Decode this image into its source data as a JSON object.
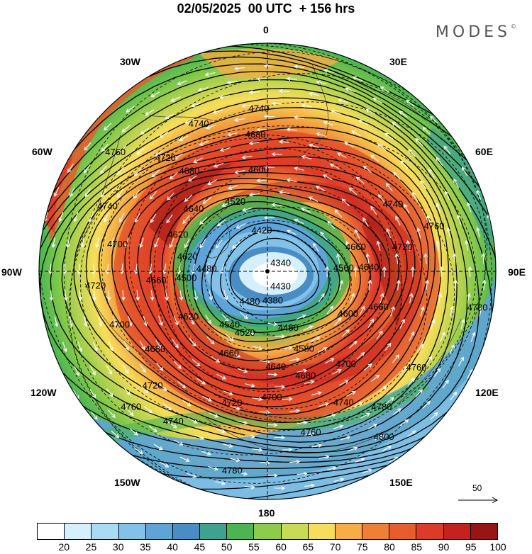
{
  "title": "02/05/2025  00 UTC  + 156 hrs",
  "brand": "MODES",
  "brand_mark": "©",
  "longitude_labels": {
    "lon_0": "0",
    "lon_30e": "30E",
    "lon_60e": "60E",
    "lon_90e": "90E",
    "lon_120e": "120E",
    "lon_150e": "150E",
    "lon_180": "180",
    "lon_150w": "150W",
    "lon_120w": "120W",
    "lon_90w": "90W",
    "lon_60w": "60W",
    "lon_30w": "30W"
  },
  "vector_reference": "50",
  "colorbar": {
    "ticks": [
      "20",
      "25",
      "30",
      "35",
      "40",
      "45",
      "50",
      "55",
      "60",
      "65",
      "70",
      "75",
      "80",
      "85",
      "90",
      "95",
      "100"
    ],
    "colors": [
      "#ffffff",
      "#d6f0fb",
      "#a9dcf2",
      "#82c1e8",
      "#5ea4d9",
      "#4a8cc4",
      "#3fa291",
      "#4cb552",
      "#8ccb4b",
      "#c7dc52",
      "#f7de5a",
      "#f6ad46",
      "#ef7f34",
      "#e85c2d",
      "#dd3a28",
      "#c4211f",
      "#9a1414"
    ]
  },
  "chart_data": {
    "type": "polar-stereographic map",
    "hemisphere": "north",
    "shading": "wind speed",
    "vectors": "wind",
    "geopotential_contours": [
      {
        "label": "4740",
        "at_lon": -3,
        "at_lat": 58
      },
      {
        "label": "4740",
        "at_lon": -25,
        "at_lat": 58
      },
      {
        "label": "4680",
        "at_lon": -5,
        "at_lat": 63
      },
      {
        "label": "4720",
        "at_lon": -42,
        "at_lat": 60
      },
      {
        "label": "4680",
        "at_lon": -38,
        "at_lat": 65
      },
      {
        "label": "4600",
        "at_lon": -5,
        "at_lat": 70
      },
      {
        "label": "4760",
        "at_lon": -52,
        "at_lat": 52
      },
      {
        "label": "4640",
        "at_lon": -50,
        "at_lat": 71
      },
      {
        "label": "4520",
        "at_lon": -25,
        "at_lat": 75
      },
      {
        "label": "4740",
        "at_lon": -68,
        "at_lat": 56
      },
      {
        "label": "4620",
        "at_lon": -68,
        "at_lat": 71
      },
      {
        "label": "4420",
        "at_lon": -8,
        "at_lat": 82
      },
      {
        "label": "4620",
        "at_lon": -80,
        "at_lat": 74
      },
      {
        "label": "4700",
        "at_lon": -80,
        "at_lat": 60
      },
      {
        "label": "4480",
        "at_lon": -88,
        "at_lat": 78
      },
      {
        "label": "4340",
        "at_lon": 60,
        "at_lat": 87
      },
      {
        "label": "4660",
        "at_lon": -95,
        "at_lat": 68
      },
      {
        "label": "4500",
        "at_lon": -95,
        "at_lat": 74
      },
      {
        "label": "4720",
        "at_lon": -95,
        "at_lat": 56
      },
      {
        "label": "4700",
        "at_lon": -110,
        "at_lat": 59
      },
      {
        "label": "4620",
        "at_lon": -120,
        "at_lat": 72
      },
      {
        "label": "4540",
        "at_lon": -145,
        "at_lat": 77
      },
      {
        "label": "4480",
        "at_lon": -150,
        "at_lat": 83
      },
      {
        "label": "4380",
        "at_lon": 170,
        "at_lat": 84
      },
      {
        "label": "4480",
        "at_lon": 160,
        "at_lat": 78
      },
      {
        "label": "4520",
        "at_lon": -160,
        "at_lat": 77
      },
      {
        "label": "4580",
        "at_lon": 155,
        "at_lat": 73
      },
      {
        "label": "4640",
        "at_lon": 175,
        "at_lat": 71
      },
      {
        "label": "4660",
        "at_lon": -155,
        "at_lat": 72
      },
      {
        "label": "4680",
        "at_lon": -125,
        "at_lat": 63
      },
      {
        "label": "4680",
        "at_lon": 160,
        "at_lat": 68
      },
      {
        "label": "4700",
        "at_lon": 178,
        "at_lat": 65
      },
      {
        "label": "4720",
        "at_lon": -135,
        "at_lat": 58
      },
      {
        "label": "4720",
        "at_lon": -165,
        "at_lat": 63
      },
      {
        "label": "4740",
        "at_lon": 150,
        "at_lat": 60
      },
      {
        "label": "4740",
        "at_lon": -148,
        "at_lat": 55
      },
      {
        "label": "4760",
        "at_lon": -135,
        "at_lat": 52
      },
      {
        "label": "4760",
        "at_lon": 165,
        "at_lat": 57
      },
      {
        "label": "4780",
        "at_lon": -170,
        "at_lat": 50
      },
      {
        "label": "4780",
        "at_lon": 140,
        "at_lat": 55
      },
      {
        "label": "4800",
        "at_lon": 145,
        "at_lat": 50
      },
      {
        "label": "4700",
        "at_lon": 140,
        "at_lat": 66
      },
      {
        "label": "4760",
        "at_lon": 123,
        "at_lat": 55
      },
      {
        "label": "4780",
        "at_lon": 100,
        "at_lat": 48
      },
      {
        "label": "4600",
        "at_lon": 118,
        "at_lat": 72
      },
      {
        "label": "4660",
        "at_lon": 108,
        "at_lat": 67
      },
      {
        "label": "4560",
        "at_lon": 88,
        "at_lat": 75
      },
      {
        "label": "4640",
        "at_lon": 88,
        "at_lat": 70
      },
      {
        "label": "4660",
        "at_lon": 75,
        "at_lat": 72
      },
      {
        "label": "4720",
        "at_lon": 80,
        "at_lat": 63
      },
      {
        "label": "4740",
        "at_lon": 62,
        "at_lat": 62
      },
      {
        "label": "4760",
        "at_lon": 75,
        "at_lat": 56
      },
      {
        "label": "4430",
        "at_lon": 140,
        "at_lat": 86
      }
    ]
  }
}
